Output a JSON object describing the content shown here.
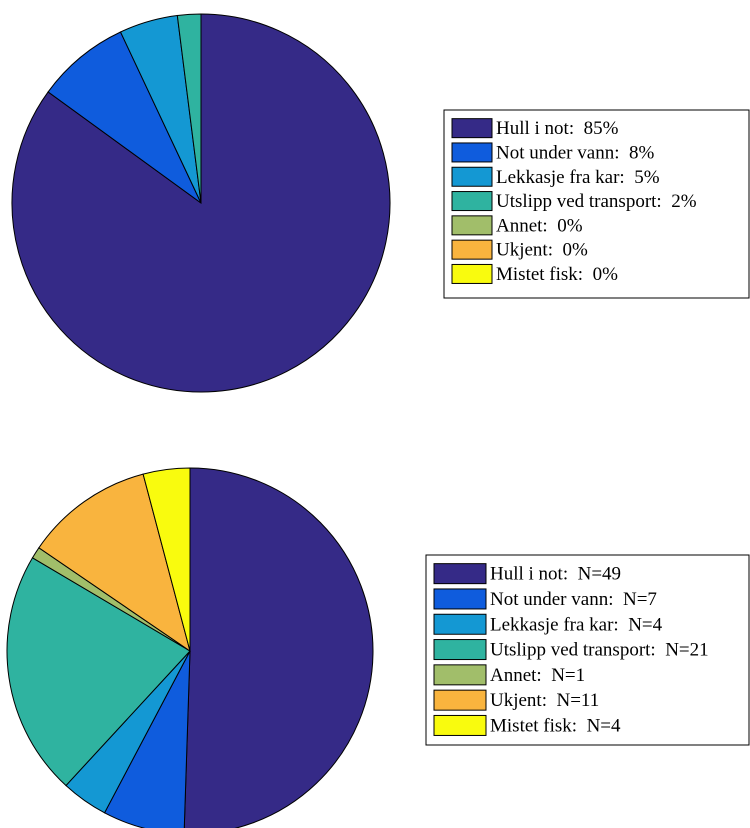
{
  "chart_data": [
    {
      "type": "pie",
      "title": "",
      "categories": [
        "Hull i not",
        "Not under vann",
        "Lekkasje fra kar",
        "Utslipp ved transport",
        "Annet",
        "Ukjent",
        "Mistet fisk"
      ],
      "values": [
        85,
        8,
        5,
        2,
        0,
        0,
        0
      ],
      "unit": "%",
      "colors": [
        "#352a87",
        "#0f5cdd",
        "#1498d3",
        "#2fb3a0",
        "#a1be6a",
        "#f9b43e",
        "#f9fb0e"
      ],
      "legend_labels": [
        "Hull i not:  85%",
        "Not under vann:  8%",
        "Lekkasje fra kar:  5%",
        "Utslipp ved transport:  2%",
        "Annet:  0%",
        "Ukjent:  0%",
        "Mistet fisk:  0%"
      ],
      "legend": "right"
    },
    {
      "type": "pie",
      "title": "",
      "categories": [
        "Hull i not",
        "Not under vann",
        "Lekkasje fra kar",
        "Utslipp ved transport",
        "Annet",
        "Ukjent",
        "Mistet fisk"
      ],
      "values": [
        49,
        7,
        4,
        21,
        1,
        11,
        4
      ],
      "colors": [
        "#352a87",
        "#0f5cdd",
        "#1498d3",
        "#2fb3a0",
        "#a1be6a",
        "#f9b43e",
        "#f9fb0e"
      ],
      "legend_labels": [
        "Hull i not:  N=49",
        "Not under vann:  N=7",
        "Lekkasje fra kar:  N=4",
        "Utslipp ved transport:  N=21",
        "Annet:  N=1",
        "Ukjent:  N=11",
        "Mistet fisk:  N=4"
      ],
      "legend": "right"
    }
  ]
}
